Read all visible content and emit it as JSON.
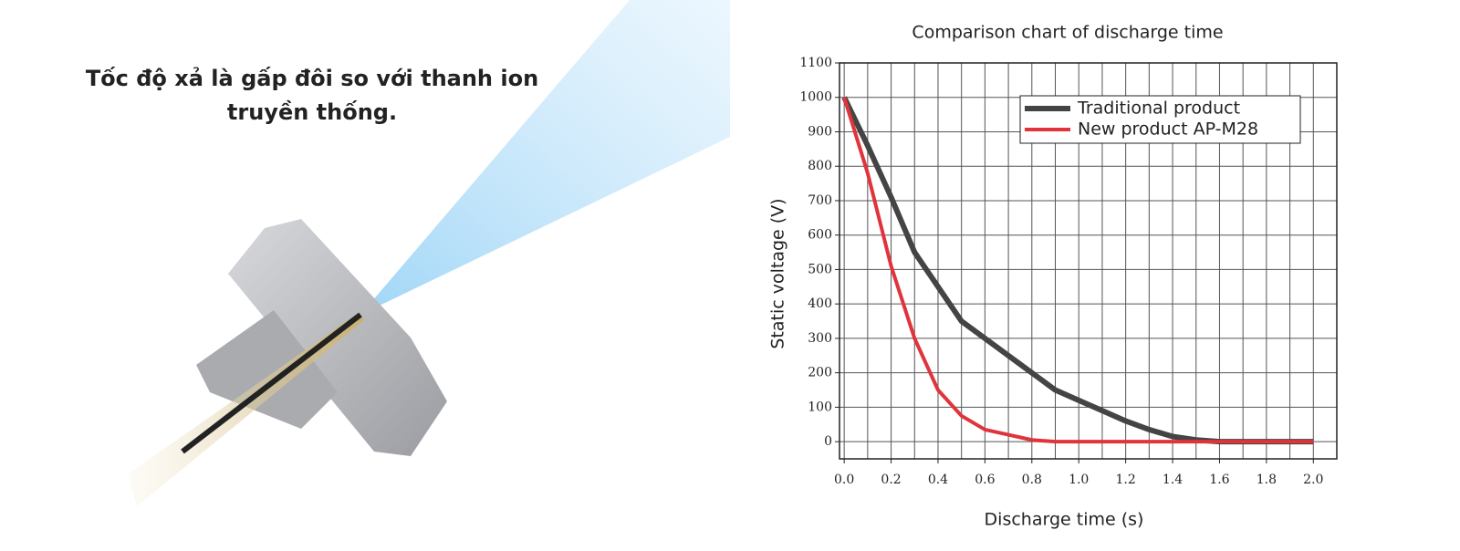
{
  "header": {
    "lines": [
      "Tốc độ xả là gấp đôi so với thanh ion",
      "truyền thống."
    ]
  },
  "chart_data": {
    "type": "line",
    "title": "Comparison chart of discharge time",
    "x_label": "Discharge time (s)",
    "y_label": "Static voltage (V)",
    "x": [
      0,
      0.1,
      0.2,
      0.3,
      0.4,
      0.5,
      0.6,
      0.7,
      0.8,
      0.9,
      1.0,
      1.1,
      1.2,
      1.3,
      1.4,
      1.5,
      1.6,
      1.7,
      1.8,
      1.9,
      2.0
    ],
    "series": [
      {
        "name": "Traditional product",
        "color": "#444444",
        "values": [
          1000,
          860,
          710,
          550,
          450,
          350,
          300,
          250,
          200,
          150,
          120,
          90,
          60,
          35,
          15,
          5,
          0,
          0,
          0,
          0,
          0
        ]
      },
      {
        "name": "New product AP-M28",
        "color": "#e0343d",
        "values": [
          1000,
          780,
          510,
          300,
          150,
          75,
          35,
          20,
          5,
          0,
          0,
          0,
          0,
          0,
          0,
          0,
          0,
          0,
          0,
          0,
          0
        ]
      }
    ],
    "xlim": [
      -0.02,
      2.1
    ],
    "ylim": [
      -50,
      1100
    ],
    "xticks": [
      {
        "value": 0,
        "label": "0.0"
      },
      0.2,
      0.4,
      0.6,
      0.8,
      {
        "value": 1,
        "label": "1.0"
      },
      1.2,
      1.4,
      1.6,
      1.8,
      {
        "value": 2,
        "label": "2.0"
      }
    ],
    "yticks": [
      0,
      100,
      200,
      300,
      400,
      500,
      600,
      700,
      800,
      900,
      1000,
      1100
    ],
    "grid": true,
    "legend": "upper right"
  }
}
